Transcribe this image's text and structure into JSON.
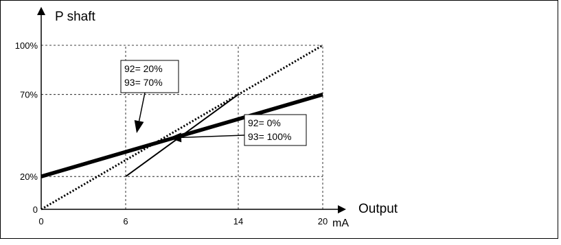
{
  "chart_data": {
    "type": "line",
    "title": "",
    "ylabel": "P shaft",
    "xlabel": "Output",
    "xunit": "mA",
    "xlim": [
      0,
      20
    ],
    "ylim": [
      0,
      100
    ],
    "x_ticks": [
      {
        "value": 0,
        "label": "0"
      },
      {
        "value": 6,
        "label": "6"
      },
      {
        "value": 14,
        "label": "14"
      },
      {
        "value": 20,
        "label": "20"
      }
    ],
    "y_ticks": [
      {
        "value": 0,
        "label": "0"
      },
      {
        "value": 20,
        "label": "20%"
      },
      {
        "value": 70,
        "label": "70%"
      },
      {
        "value": 100,
        "label": "100%"
      }
    ],
    "grid": "dashed at tick values",
    "series": [
      {
        "style": "thick",
        "points": [
          [
            0,
            20
          ],
          [
            20,
            70
          ]
        ]
      },
      {
        "style": "thin",
        "points": [
          [
            6,
            20
          ],
          [
            14,
            70
          ]
        ]
      },
      {
        "style": "dotted",
        "points": [
          [
            0,
            0
          ],
          [
            20,
            100
          ]
        ]
      }
    ],
    "annotations": [
      {
        "lines": [
          "92= 20%",
          "93= 70%"
        ],
        "points_to": "thick"
      },
      {
        "lines": [
          "92= 0%",
          "93= 100%"
        ],
        "points_to": "thin"
      }
    ]
  }
}
